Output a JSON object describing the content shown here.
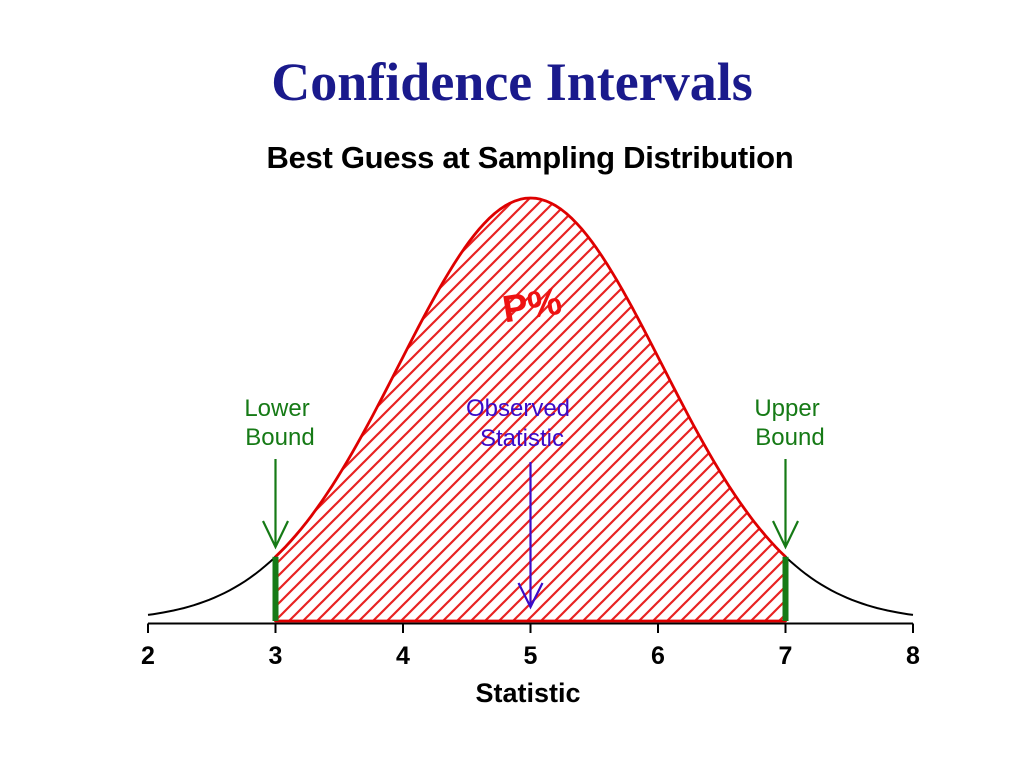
{
  "slide": {
    "title": "Confidence Intervals"
  },
  "chart_data": {
    "type": "area",
    "title": "Best Guess at Sampling Distribution",
    "xlabel": "Statistic",
    "ylabel": "",
    "xlim": [
      2,
      8
    ],
    "x_ticks": [
      2,
      3,
      4,
      5,
      6,
      7,
      8
    ],
    "grid": false,
    "legend": false,
    "curve": {
      "shape": "normal-density",
      "mean": 5,
      "sd": 1.03,
      "x_range": [
        2,
        8
      ]
    },
    "shaded_region": {
      "from": 3,
      "to": 7,
      "label": "P%",
      "style": "red-diagonal-hatch"
    },
    "annotations": [
      {
        "id": "lower-bound",
        "lines": [
          "Lower",
          "Bound"
        ],
        "x": 3,
        "arrow": "down"
      },
      {
        "id": "observed-statistic",
        "lines": [
          "Observed",
          "Statistic"
        ],
        "x": 5,
        "arrow": "down"
      },
      {
        "id": "upper-bound",
        "lines": [
          "Upper",
          "Bound"
        ],
        "x": 7,
        "arrow": "down"
      }
    ],
    "colors": {
      "title_navy": "#1A1A8C",
      "text_black": "#000000",
      "curve_black": "#000000",
      "region_red": "#DE0000",
      "hatch_red": "#E82222",
      "p_label_red": "#EE1111",
      "bound_green": "#167A16",
      "observed_purple": "#3C0AC8"
    }
  }
}
